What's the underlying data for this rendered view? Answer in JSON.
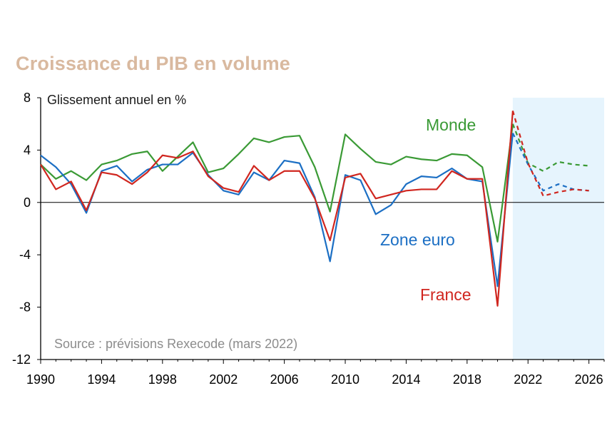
{
  "title": "Croissance du PIB en volume",
  "chart_data": {
    "type": "line",
    "ylabel": "Glissement annuel en %",
    "source": "Source : prévisions Rexecode (mars 2022)",
    "xlim": [
      1990,
      2027
    ],
    "ylim": [
      -12,
      8
    ],
    "x_ticks": [
      1990,
      1994,
      1998,
      2002,
      2006,
      2010,
      2014,
      2018,
      2022,
      2026
    ],
    "y_ticks": [
      8,
      4,
      0,
      -4,
      -8,
      -12
    ],
    "forecast_start": 2021,
    "x": [
      1990,
      1991,
      1992,
      1993,
      1994,
      1995,
      1996,
      1997,
      1998,
      1999,
      2000,
      2001,
      2002,
      2003,
      2004,
      2005,
      2006,
      2007,
      2008,
      2009,
      2010,
      2011,
      2012,
      2013,
      2014,
      2015,
      2016,
      2017,
      2018,
      2019,
      2020,
      2021,
      2022,
      2023,
      2024,
      2025,
      2026
    ],
    "series": [
      {
        "name": "Monde",
        "color": "#3a9a35",
        "values": [
          2.9,
          1.8,
          2.4,
          1.7,
          2.9,
          3.2,
          3.7,
          3.9,
          2.4,
          3.5,
          4.6,
          2.3,
          2.6,
          3.7,
          4.9,
          4.6,
          5.0,
          5.1,
          2.7,
          -0.7,
          5.2,
          4.1,
          3.1,
          2.9,
          3.5,
          3.3,
          3.2,
          3.7,
          3.6,
          2.7,
          -3.0,
          6.0,
          3.0,
          2.4,
          3.1,
          2.9,
          2.8
        ]
      },
      {
        "name": "Zone euro",
        "color": "#1c6fc4",
        "values": [
          3.6,
          2.7,
          1.4,
          -0.8,
          2.4,
          2.8,
          1.6,
          2.5,
          2.9,
          2.9,
          3.8,
          2.1,
          0.9,
          0.6,
          2.3,
          1.7,
          3.2,
          3.0,
          0.4,
          -4.5,
          2.1,
          1.7,
          -0.9,
          -0.2,
          1.4,
          2.0,
          1.9,
          2.6,
          1.8,
          1.6,
          -6.4,
          5.3,
          2.9,
          0.9,
          1.4,
          1.0,
          0.9
        ]
      },
      {
        "name": "France",
        "color": "#d0261f",
        "values": [
          2.9,
          1.0,
          1.6,
          -0.6,
          2.3,
          2.1,
          1.4,
          2.3,
          3.6,
          3.4,
          3.9,
          2.0,
          1.1,
          0.8,
          2.8,
          1.7,
          2.4,
          2.4,
          0.3,
          -2.9,
          1.9,
          2.2,
          0.3,
          0.6,
          0.9,
          1.0,
          1.0,
          2.4,
          1.8,
          1.8,
          -7.9,
          7.0,
          3.0,
          0.5,
          0.8,
          1.0,
          0.9
        ]
      }
    ]
  }
}
